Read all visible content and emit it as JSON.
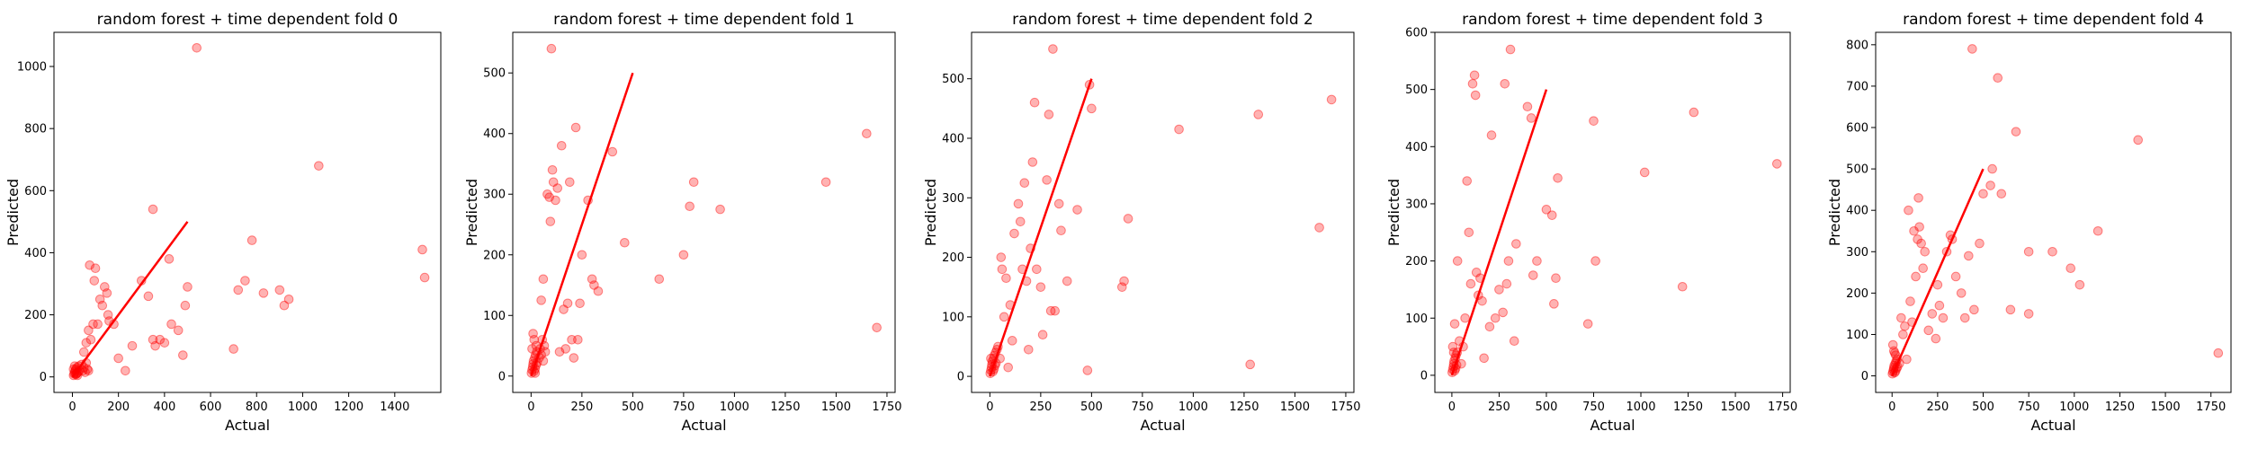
{
  "chart_data": [
    {
      "type": "scatter",
      "title": "random forest + time dependent fold 0",
      "xlabel": "Actual",
      "ylabel": "Predicted",
      "xlim": [
        -80,
        1600
      ],
      "ylim": [
        -50,
        1110
      ],
      "xticks": [
        0,
        200,
        400,
        600,
        800,
        1000,
        1200,
        1400
      ],
      "yticks": [
        0,
        200,
        400,
        600,
        800,
        1000
      ],
      "grid": false,
      "point_color": "#ff0000",
      "line_color": "#ff0000",
      "reference_line": {
        "x": [
          0,
          500
        ],
        "y": [
          0,
          500
        ]
      },
      "points": [
        [
          5,
          5
        ],
        [
          8,
          10
        ],
        [
          10,
          15
        ],
        [
          12,
          20
        ],
        [
          15,
          25
        ],
        [
          18,
          10
        ],
        [
          20,
          30
        ],
        [
          22,
          5
        ],
        [
          25,
          15
        ],
        [
          28,
          35
        ],
        [
          30,
          20
        ],
        [
          10,
          35
        ],
        [
          5,
          25
        ],
        [
          15,
          8
        ],
        [
          20,
          12
        ],
        [
          40,
          40
        ],
        [
          45,
          20
        ],
        [
          50,
          30
        ],
        [
          55,
          15
        ],
        [
          60,
          45
        ],
        [
          65,
          25
        ],
        [
          70,
          20
        ],
        [
          50,
          80
        ],
        [
          60,
          110
        ],
        [
          70,
          150
        ],
        [
          75,
          360
        ],
        [
          80,
          120
        ],
        [
          90,
          170
        ],
        [
          95,
          310
        ],
        [
          100,
          350
        ],
        [
          110,
          170
        ],
        [
          120,
          250
        ],
        [
          130,
          230
        ],
        [
          140,
          290
        ],
        [
          150,
          270
        ],
        [
          155,
          200
        ],
        [
          160,
          180
        ],
        [
          180,
          170
        ],
        [
          200,
          60
        ],
        [
          230,
          20
        ],
        [
          260,
          100
        ],
        [
          300,
          310
        ],
        [
          330,
          260
        ],
        [
          350,
          540
        ],
        [
          350,
          120
        ],
        [
          360,
          100
        ],
        [
          380,
          120
        ],
        [
          400,
          110
        ],
        [
          420,
          380
        ],
        [
          430,
          170
        ],
        [
          460,
          150
        ],
        [
          480,
          70
        ],
        [
          490,
          230
        ],
        [
          500,
          290
        ],
        [
          540,
          1060
        ],
        [
          700,
          90
        ],
        [
          720,
          280
        ],
        [
          750,
          310
        ],
        [
          780,
          440
        ],
        [
          830,
          270
        ],
        [
          900,
          280
        ],
        [
          920,
          230
        ],
        [
          940,
          250
        ],
        [
          1070,
          680
        ],
        [
          1520,
          410
        ],
        [
          1530,
          320
        ]
      ]
    },
    {
      "type": "scatter",
      "title": "random forest + time dependent fold 1",
      "xlabel": "Actual",
      "ylabel": "Predicted",
      "xlim": [
        -90,
        1790
      ],
      "ylim": [
        -27,
        567
      ],
      "xticks": [
        0,
        250,
        500,
        750,
        1000,
        1250,
        1500,
        1750
      ],
      "yticks": [
        0,
        100,
        200,
        300,
        400,
        500
      ],
      "grid": false,
      "point_color": "#ff0000",
      "line_color": "#ff0000",
      "reference_line": {
        "x": [
          0,
          500
        ],
        "y": [
          0,
          500
        ]
      },
      "points": [
        [
          2,
          5
        ],
        [
          5,
          10
        ],
        [
          8,
          15
        ],
        [
          10,
          20
        ],
        [
          12,
          25
        ],
        [
          15,
          8
        ],
        [
          18,
          30
        ],
        [
          20,
          12
        ],
        [
          22,
          35
        ],
        [
          25,
          18
        ],
        [
          28,
          40
        ],
        [
          30,
          22
        ],
        [
          5,
          45
        ],
        [
          10,
          70
        ],
        [
          15,
          60
        ],
        [
          20,
          5
        ],
        [
          25,
          50
        ],
        [
          40,
          30
        ],
        [
          45,
          45
        ],
        [
          50,
          35
        ],
        [
          55,
          60
        ],
        [
          60,
          25
        ],
        [
          65,
          50
        ],
        [
          70,
          40
        ],
        [
          50,
          125
        ],
        [
          60,
          160
        ],
        [
          80,
          300
        ],
        [
          90,
          295
        ],
        [
          95,
          255
        ],
        [
          100,
          540
        ],
        [
          105,
          340
        ],
        [
          110,
          320
        ],
        [
          120,
          290
        ],
        [
          130,
          310
        ],
        [
          140,
          40
        ],
        [
          150,
          380
        ],
        [
          160,
          110
        ],
        [
          170,
          45
        ],
        [
          180,
          120
        ],
        [
          190,
          320
        ],
        [
          200,
          60
        ],
        [
          210,
          30
        ],
        [
          220,
          410
        ],
        [
          230,
          60
        ],
        [
          240,
          120
        ],
        [
          250,
          200
        ],
        [
          280,
          290
        ],
        [
          300,
          160
        ],
        [
          310,
          150
        ],
        [
          330,
          140
        ],
        [
          400,
          370
        ],
        [
          460,
          220
        ],
        [
          630,
          160
        ],
        [
          750,
          200
        ],
        [
          780,
          280
        ],
        [
          800,
          320
        ],
        [
          930,
          275
        ],
        [
          1450,
          320
        ],
        [
          1650,
          400
        ],
        [
          1700,
          80
        ]
      ]
    },
    {
      "type": "scatter",
      "title": "random forest + time dependent fold 2",
      "xlabel": "Actual",
      "ylabel": "Predicted",
      "xlim": [
        -90,
        1790
      ],
      "ylim": [
        -27,
        578
      ],
      "xticks": [
        0,
        250,
        500,
        750,
        1000,
        1250,
        1500,
        1750
      ],
      "yticks": [
        0,
        100,
        200,
        300,
        400,
        500
      ],
      "grid": false,
      "point_color": "#ff0000",
      "line_color": "#ff0000",
      "reference_line": {
        "x": [
          0,
          500
        ],
        "y": [
          0,
          500
        ]
      },
      "points": [
        [
          2,
          5
        ],
        [
          5,
          10
        ],
        [
          8,
          15
        ],
        [
          10,
          20
        ],
        [
          12,
          25
        ],
        [
          15,
          8
        ],
        [
          18,
          30
        ],
        [
          20,
          12
        ],
        [
          22,
          35
        ],
        [
          25,
          18
        ],
        [
          28,
          40
        ],
        [
          30,
          22
        ],
        [
          35,
          45
        ],
        [
          40,
          50
        ],
        [
          5,
          30
        ],
        [
          50,
          30
        ],
        [
          55,
          200
        ],
        [
          60,
          180
        ],
        [
          70,
          100
        ],
        [
          80,
          165
        ],
        [
          90,
          15
        ],
        [
          100,
          120
        ],
        [
          110,
          60
        ],
        [
          120,
          240
        ],
        [
          140,
          290
        ],
        [
          150,
          260
        ],
        [
          160,
          180
        ],
        [
          170,
          325
        ],
        [
          180,
          160
        ],
        [
          190,
          45
        ],
        [
          200,
          215
        ],
        [
          210,
          360
        ],
        [
          220,
          460
        ],
        [
          230,
          180
        ],
        [
          250,
          150
        ],
        [
          260,
          70
        ],
        [
          280,
          330
        ],
        [
          290,
          440
        ],
        [
          300,
          110
        ],
        [
          310,
          550
        ],
        [
          320,
          110
        ],
        [
          340,
          290
        ],
        [
          350,
          245
        ],
        [
          380,
          160
        ],
        [
          430,
          280
        ],
        [
          480,
          10
        ],
        [
          490,
          490
        ],
        [
          500,
          450
        ],
        [
          650,
          150
        ],
        [
          660,
          160
        ],
        [
          680,
          265
        ],
        [
          930,
          415
        ],
        [
          1280,
          20
        ],
        [
          1320,
          440
        ],
        [
          1620,
          250
        ],
        [
          1680,
          465
        ]
      ]
    },
    {
      "type": "scatter",
      "title": "random forest + time dependent fold 3",
      "xlabel": "Actual",
      "ylabel": "Predicted",
      "xlim": [
        -90,
        1790
      ],
      "ylim": [
        -30,
        600
      ],
      "xticks": [
        0,
        250,
        500,
        750,
        1000,
        1250,
        1500,
        1750
      ],
      "yticks": [
        0,
        100,
        200,
        300,
        400,
        500,
        600
      ],
      "grid": false,
      "point_color": "#ff0000",
      "line_color": "#ff0000",
      "reference_line": {
        "x": [
          0,
          500
        ],
        "y": [
          0,
          500
        ]
      },
      "points": [
        [
          2,
          5
        ],
        [
          5,
          10
        ],
        [
          8,
          15
        ],
        [
          10,
          20
        ],
        [
          12,
          25
        ],
        [
          15,
          8
        ],
        [
          18,
          30
        ],
        [
          20,
          12
        ],
        [
          22,
          35
        ],
        [
          25,
          18
        ],
        [
          28,
          40
        ],
        [
          5,
          50
        ],
        [
          10,
          40
        ],
        [
          15,
          90
        ],
        [
          30,
          200
        ],
        [
          40,
          60
        ],
        [
          50,
          20
        ],
        [
          60,
          50
        ],
        [
          70,
          100
        ],
        [
          80,
          340
        ],
        [
          90,
          250
        ],
        [
          100,
          160
        ],
        [
          110,
          510
        ],
        [
          120,
          525
        ],
        [
          125,
          490
        ],
        [
          130,
          180
        ],
        [
          140,
          140
        ],
        [
          150,
          170
        ],
        [
          160,
          130
        ],
        [
          170,
          30
        ],
        [
          200,
          85
        ],
        [
          210,
          420
        ],
        [
          230,
          100
        ],
        [
          250,
          150
        ],
        [
          270,
          110
        ],
        [
          280,
          510
        ],
        [
          290,
          160
        ],
        [
          300,
          200
        ],
        [
          310,
          570
        ],
        [
          330,
          60
        ],
        [
          340,
          230
        ],
        [
          400,
          470
        ],
        [
          420,
          450
        ],
        [
          430,
          175
        ],
        [
          450,
          200
        ],
        [
          500,
          290
        ],
        [
          530,
          280
        ],
        [
          540,
          125
        ],
        [
          550,
          170
        ],
        [
          560,
          345
        ],
        [
          720,
          90
        ],
        [
          750,
          445
        ],
        [
          760,
          200
        ],
        [
          1020,
          355
        ],
        [
          1220,
          155
        ],
        [
          1280,
          460
        ],
        [
          1720,
          370
        ]
      ]
    },
    {
      "type": "scatter",
      "title": "random forest + time dependent fold 4",
      "xlabel": "Actual",
      "ylabel": "Predicted",
      "xlim": [
        -90,
        1860
      ],
      "ylim": [
        -40,
        830
      ],
      "xticks": [
        0,
        250,
        500,
        750,
        1000,
        1250,
        1500,
        1750
      ],
      "yticks": [
        0,
        100,
        200,
        300,
        400,
        500,
        600,
        700,
        800
      ],
      "grid": false,
      "point_color": "#ff0000",
      "line_color": "#ff0000",
      "reference_line": {
        "x": [
          0,
          500
        ],
        "y": [
          0,
          500
        ]
      },
      "points": [
        [
          2,
          5
        ],
        [
          5,
          10
        ],
        [
          8,
          15
        ],
        [
          10,
          20
        ],
        [
          12,
          25
        ],
        [
          15,
          8
        ],
        [
          18,
          30
        ],
        [
          20,
          12
        ],
        [
          22,
          35
        ],
        [
          25,
          18
        ],
        [
          28,
          40
        ],
        [
          30,
          22
        ],
        [
          5,
          75
        ],
        [
          10,
          60
        ],
        [
          15,
          55
        ],
        [
          20,
          50
        ],
        [
          40,
          30
        ],
        [
          50,
          140
        ],
        [
          60,
          100
        ],
        [
          70,
          120
        ],
        [
          80,
          40
        ],
        [
          90,
          400
        ],
        [
          100,
          180
        ],
        [
          110,
          130
        ],
        [
          120,
          350
        ],
        [
          130,
          240
        ],
        [
          140,
          330
        ],
        [
          145,
          430
        ],
        [
          150,
          360
        ],
        [
          160,
          320
        ],
        [
          170,
          260
        ],
        [
          180,
          300
        ],
        [
          200,
          110
        ],
        [
          220,
          150
        ],
        [
          240,
          90
        ],
        [
          250,
          220
        ],
        [
          260,
          170
        ],
        [
          280,
          140
        ],
        [
          300,
          300
        ],
        [
          320,
          340
        ],
        [
          330,
          330
        ],
        [
          350,
          240
        ],
        [
          380,
          200
        ],
        [
          400,
          140
        ],
        [
          420,
          290
        ],
        [
          440,
          790
        ],
        [
          450,
          160
        ],
        [
          480,
          320
        ],
        [
          500,
          440
        ],
        [
          540,
          460
        ],
        [
          550,
          500
        ],
        [
          580,
          720
        ],
        [
          600,
          440
        ],
        [
          650,
          160
        ],
        [
          680,
          590
        ],
        [
          750,
          150
        ],
        [
          750,
          300
        ],
        [
          880,
          300
        ],
        [
          980,
          260
        ],
        [
          1030,
          220
        ],
        [
          1130,
          350
        ],
        [
          1350,
          570
        ],
        [
          1790,
          55
        ]
      ]
    }
  ]
}
